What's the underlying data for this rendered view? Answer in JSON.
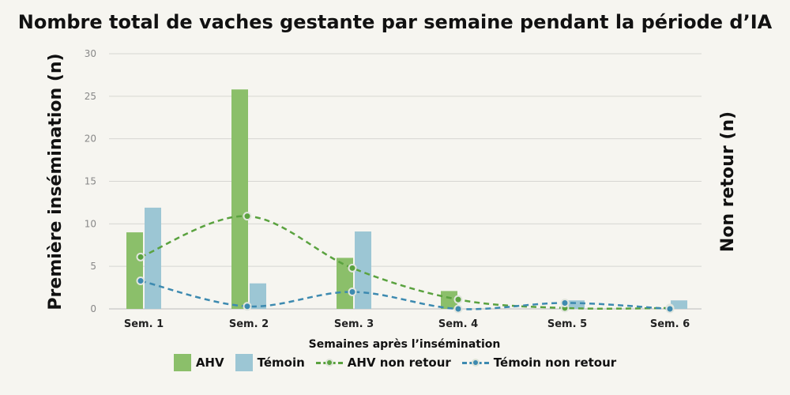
{
  "chart_data": {
    "type": "bar",
    "title": "Nombre total de vaches gestante par semaine pendant la période d’IA",
    "xlabel": "Semaines après l’insémination",
    "ylabel": "Première insémination (n)",
    "y2label": "Non retour (n)",
    "ylim": [
      0,
      30
    ],
    "yticks": [
      0,
      5,
      10,
      15,
      20,
      25,
      30
    ],
    "grid": true,
    "legend_position": "bottom",
    "categories": [
      "Sem. 1",
      "Sem. 2",
      "Sem. 3",
      "Sem. 4",
      "Sem. 5",
      "Sem. 6"
    ],
    "series": [
      {
        "name": "AHV",
        "kind": "bar",
        "color": "#8bbf6a",
        "values": [
          9,
          25.8,
          6,
          2.1,
          0,
          0
        ]
      },
      {
        "name": "Témoin",
        "kind": "bar",
        "color": "#9cc6d4",
        "values": [
          11.9,
          3,
          9.1,
          0,
          1,
          1
        ]
      },
      {
        "name": "AHV non retour",
        "kind": "line",
        "color": "#5aa23f",
        "values": [
          6.1,
          10.9,
          4.8,
          1.1,
          0.1,
          0.1
        ]
      },
      {
        "name": "Témoin non retour",
        "kind": "line",
        "color": "#3d8ab0",
        "values": [
          3.3,
          0.3,
          2,
          0,
          0.7,
          0
        ]
      }
    ]
  }
}
